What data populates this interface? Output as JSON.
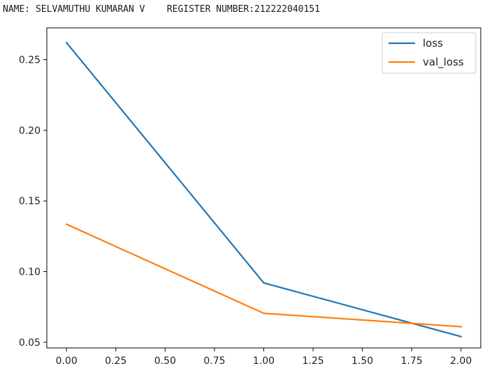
{
  "header": {
    "text": "NAME: SELVAMUTHU KUMARAN V    REGISTER NUMBER:212222040151"
  },
  "chart_data": {
    "type": "line",
    "x": [
      0.0,
      1.0,
      2.0
    ],
    "series": [
      {
        "name": "loss",
        "values": [
          0.262,
          0.092,
          0.054
        ],
        "color": "#1f77b4"
      },
      {
        "name": "val_loss",
        "values": [
          0.1335,
          0.0705,
          0.061
        ],
        "color": "#ff7f0e"
      }
    ],
    "xlim": [
      -0.1,
      2.1
    ],
    "ylim": [
      0.046,
      0.2725
    ],
    "xticks": [
      "0.00",
      "0.25",
      "0.50",
      "0.75",
      "1.00",
      "1.25",
      "1.50",
      "1.75",
      "2.00"
    ],
    "yticks": [
      "0.05",
      "0.10",
      "0.15",
      "0.20",
      "0.25"
    ],
    "grid": false,
    "legend_position": "top-right"
  }
}
